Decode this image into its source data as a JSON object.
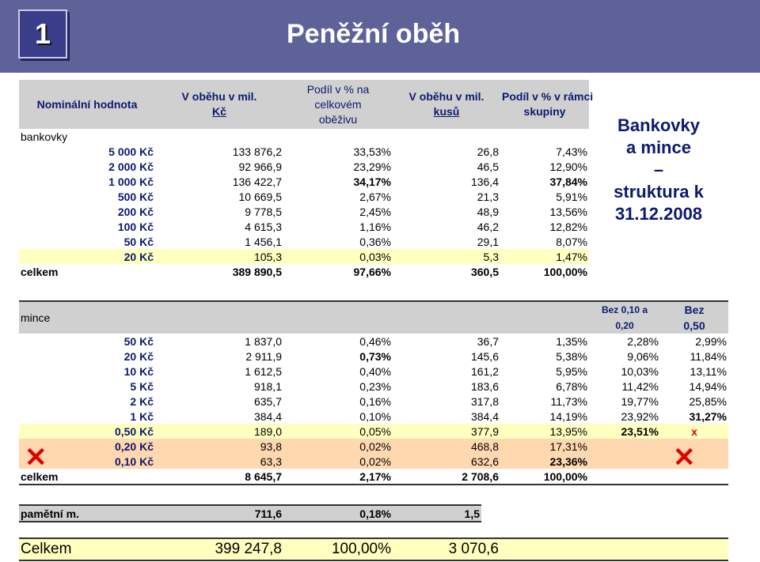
{
  "slide": {
    "number": "1",
    "title": "Peněžní oběh",
    "side_lines": [
      "Bankovky",
      "a mince",
      "–",
      "struktura k",
      "31.12.2008"
    ]
  },
  "banknotes": {
    "headers": {
      "c1": "Nominální hodnota",
      "c2a": "V oběhu v mil.",
      "c2b": "Kč",
      "c3a": "Podíl v % na",
      "c3b": "celkovém",
      "c3c": "oběživu",
      "c4a": "V oběhu v mil.",
      "c4b": "kusů",
      "c5a": "Podíl v % v rámci",
      "c5b": "skupiny"
    },
    "section_label": "bankovky",
    "rows": [
      {
        "denom": "5 000 Kč",
        "mil_kc": "133 876,2",
        "share": "33,53%",
        "pcs": "26,8",
        "group": "7,43%"
      },
      {
        "denom": "2 000 Kč",
        "mil_kc": "92 966,9",
        "share": "23,29%",
        "pcs": "46,5",
        "group": "12,90%"
      },
      {
        "denom": "1 000 Kč",
        "mil_kc": "136 422,7",
        "share": "34,17%",
        "pcs": "136,4",
        "group": "37,84%"
      },
      {
        "denom": "500 Kč",
        "mil_kc": "10 669,5",
        "share": "2,67%",
        "pcs": "21,3",
        "group": "5,91%"
      },
      {
        "denom": "200 Kč",
        "mil_kc": "9 778,5",
        "share": "2,45%",
        "pcs": "48,9",
        "group": "13,56%"
      },
      {
        "denom": "100 Kč",
        "mil_kc": "4 615,3",
        "share": "1,16%",
        "pcs": "46,2",
        "group": "12,82%"
      },
      {
        "denom": "50 Kč",
        "mil_kc": "1 456,1",
        "share": "0,36%",
        "pcs": "29,1",
        "group": "8,07%"
      },
      {
        "denom": "20 Kč",
        "mil_kc": "105,3",
        "share": "0,03%",
        "pcs": "5,3",
        "group": "1,47%"
      }
    ],
    "total": {
      "label": "celkem",
      "mil_kc": "389 890,5",
      "share": "97,66%",
      "pcs": "360,5",
      "group": "100,00%"
    }
  },
  "coins": {
    "section_label": "mince",
    "extra_header_1a": "Bez 0,10 a",
    "extra_header_1b": "0,20",
    "extra_header_2a": "Bez",
    "extra_header_2b": "0,50",
    "rows": [
      {
        "denom": "50 Kč",
        "mil_kc": "1 837,0",
        "share": "0,46%",
        "pcs": "36,7",
        "group": "1,35%",
        "ex1": "2,28%",
        "ex2": "2,99%"
      },
      {
        "denom": "20 Kč",
        "mil_kc": "2 911,9",
        "share": "0,73%",
        "pcs": "145,6",
        "group": "5,38%",
        "ex1": "9,06%",
        "ex2": "11,84%"
      },
      {
        "denom": "10 Kč",
        "mil_kc": "1 612,5",
        "share": "0,40%",
        "pcs": "161,2",
        "group": "5,95%",
        "ex1": "10,03%",
        "ex2": "13,11%"
      },
      {
        "denom": "5 Kč",
        "mil_kc": "918,1",
        "share": "0,23%",
        "pcs": "183,6",
        "group": "6,78%",
        "ex1": "11,42%",
        "ex2": "14,94%"
      },
      {
        "denom": "2 Kč",
        "mil_kc": "635,7",
        "share": "0,16%",
        "pcs": "317,8",
        "group": "11,73%",
        "ex1": "19,77%",
        "ex2": "25,85%"
      },
      {
        "denom": "1 Kč",
        "mil_kc": "384,4",
        "share": "0,10%",
        "pcs": "384,4",
        "group": "14,19%",
        "ex1": "23,92%",
        "ex2": "31,27%"
      },
      {
        "denom": "0,50 Kč",
        "mil_kc": "189,0",
        "share": "0,05%",
        "pcs": "377,9",
        "group": "13,95%",
        "ex1": "23,51%",
        "ex2": "x"
      },
      {
        "denom": "0,20 Kč",
        "mil_kc": "93,8",
        "share": "0,02%",
        "pcs": "468,8",
        "group": "17,31%"
      },
      {
        "denom": "0,10 Kč",
        "mil_kc": "63,3",
        "share": "0,02%",
        "pcs": "632,6",
        "group": "23,36%"
      }
    ],
    "total": {
      "label": "celkem",
      "mil_kc": "8 645,7",
      "share": "2,17%",
      "pcs": "2 708,6",
      "group": "100,00%"
    }
  },
  "commemorative": {
    "label": "pamětní m.",
    "mil_kc": "711,6",
    "share": "0,18%",
    "pcs": "1,5"
  },
  "grand_total": {
    "label": "Celkem",
    "mil_kc": "399 247,8",
    "share": "100,00%",
    "pcs": "3 070,6"
  },
  "colors": {
    "header_bar": "#5f6199",
    "accent_text": "#0b1a6e",
    "yellow_row": "#ffffc0",
    "peach_row": "#ffd8b0",
    "cross": "#e00000"
  },
  "icons": [
    "cross-mark-icon",
    "cross-mark-icon"
  ]
}
